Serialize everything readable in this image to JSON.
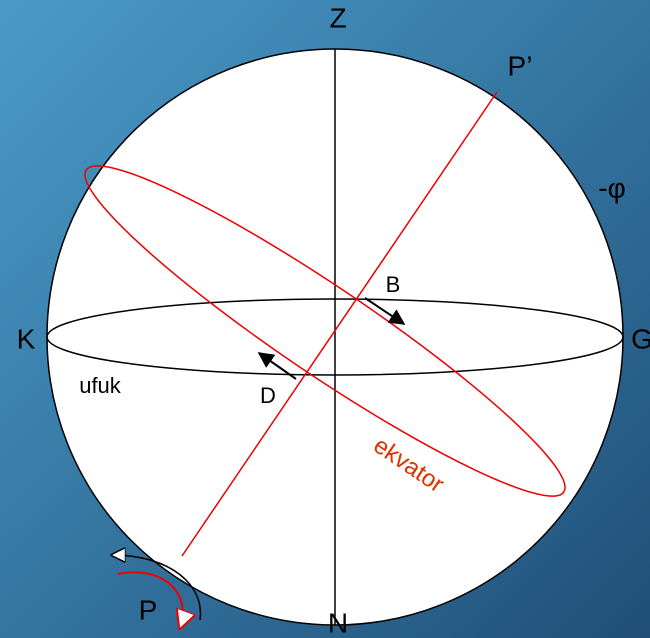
{
  "labels": {
    "zenith": "Z",
    "pole_top": "P’",
    "latitude": "-φ",
    "west": "K",
    "east": "G",
    "point_b": "B",
    "point_d": "D",
    "horizon": "ufuk",
    "equator": "ekvator",
    "nadir": "N",
    "pole_bottom": "P"
  }
}
